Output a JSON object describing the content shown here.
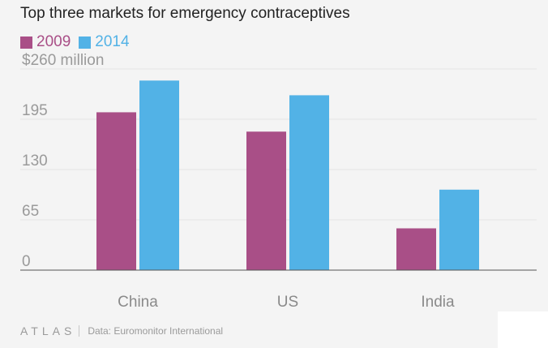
{
  "title": "Top three markets for emergency contraceptives",
  "legend": [
    {
      "label": "2009",
      "color": "#a94f87"
    },
    {
      "label": "2014",
      "color": "#52b2e6"
    }
  ],
  "chart_data": {
    "type": "bar",
    "title": "Top three markets for emergency contraceptives",
    "categories": [
      "China",
      "US",
      "India"
    ],
    "series": [
      {
        "name": "2009",
        "color": "#a94f87",
        "values": [
          204,
          179,
          54
        ]
      },
      {
        "name": "2014",
        "color": "#52b2e6",
        "values": [
          245,
          226,
          104
        ]
      }
    ],
    "y_ticks": [
      {
        "value": 0,
        "label": "0"
      },
      {
        "value": 65,
        "label": "65"
      },
      {
        "value": 130,
        "label": "130"
      },
      {
        "value": 195,
        "label": "195"
      },
      {
        "value": 260,
        "label": "$260 million"
      }
    ],
    "ylim": [
      0,
      260
    ],
    "grid": true,
    "legend_position": "top-left"
  },
  "footer": {
    "logo": "ATLAS",
    "source": "Data: Euromonitor International"
  }
}
